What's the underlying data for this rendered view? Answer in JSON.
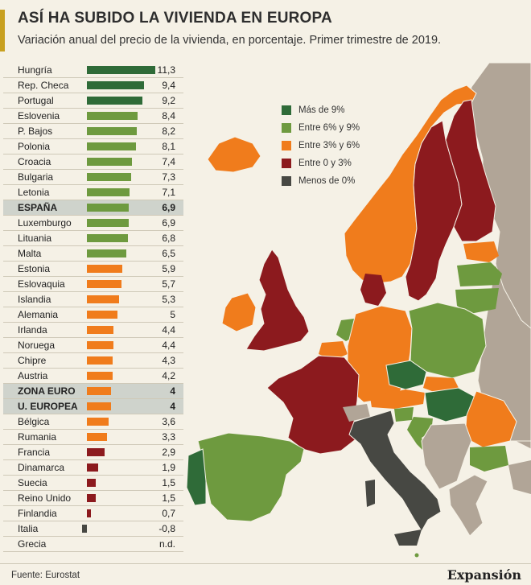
{
  "header": {
    "title": "ASÍ HA SUBIDO LA VIVIENDA EN EUROPA",
    "subtitle": "Variación anual del precio de la vivienda, en porcentaje. Primer trimestre de 2019."
  },
  "colors": {
    "more_9": "#2f6b38",
    "six_9": "#6e9a3f",
    "three_6": "#f07c1c",
    "zero_3": "#8c1a1e",
    "negative": "#474843",
    "no_data": "#b1a597",
    "sea": "#f5f1e6"
  },
  "legend": [
    {
      "label": "Más de 9%",
      "color": "#2f6b38"
    },
    {
      "label": "Entre 6% y 9%",
      "color": "#6e9a3f"
    },
    {
      "label": "Entre 3% y 6%",
      "color": "#f07c1c"
    },
    {
      "label": "Entre 0 y 3%",
      "color": "#8c1a1e"
    },
    {
      "label": "Menos de 0%",
      "color": "#474843"
    }
  ],
  "table": [
    {
      "name": "Hungría",
      "value": 11.3,
      "display": "11,3"
    },
    {
      "name": "Rep. Checa",
      "value": 9.4,
      "display": "9,4"
    },
    {
      "name": "Portugal",
      "value": 9.2,
      "display": "9,2"
    },
    {
      "name": "Eslovenia",
      "value": 8.4,
      "display": "8,4"
    },
    {
      "name": "P. Bajos",
      "value": 8.2,
      "display": "8,2"
    },
    {
      "name": "Polonia",
      "value": 8.1,
      "display": "8,1"
    },
    {
      "name": "Croacia",
      "value": 7.4,
      "display": "7,4"
    },
    {
      "name": "Bulgaria",
      "value": 7.3,
      "display": "7,3"
    },
    {
      "name": "Letonia",
      "value": 7.1,
      "display": "7,1"
    },
    {
      "name": "ESPAÑA",
      "value": 6.9,
      "display": "6,9",
      "highlight": true
    },
    {
      "name": "Luxemburgo",
      "value": 6.9,
      "display": "6,9"
    },
    {
      "name": "Lituania",
      "value": 6.8,
      "display": "6,8"
    },
    {
      "name": "Malta",
      "value": 6.5,
      "display": "6,5"
    },
    {
      "name": "Estonia",
      "value": 5.9,
      "display": "5,9"
    },
    {
      "name": "Eslovaquia",
      "value": 5.7,
      "display": "5,7"
    },
    {
      "name": "Islandia",
      "value": 5.3,
      "display": "5,3"
    },
    {
      "name": "Alemania",
      "value": 5,
      "display": "5"
    },
    {
      "name": "Irlanda",
      "value": 4.4,
      "display": "4,4"
    },
    {
      "name": "Noruega",
      "value": 4.4,
      "display": "4,4"
    },
    {
      "name": "Chipre",
      "value": 4.3,
      "display": "4,3"
    },
    {
      "name": "Austria",
      "value": 4.2,
      "display": "4,2"
    },
    {
      "name": "ZONA EURO",
      "value": 4,
      "display": "4",
      "highlight": true
    },
    {
      "name": "U. EUROPEA",
      "value": 4,
      "display": "4",
      "highlight": true
    },
    {
      "name": "Bélgica",
      "value": 3.6,
      "display": "3,6"
    },
    {
      "name": "Rumania",
      "value": 3.3,
      "display": "3,3"
    },
    {
      "name": "Francia",
      "value": 2.9,
      "display": "2,9"
    },
    {
      "name": "Dinamarca",
      "value": 1.9,
      "display": "1,9"
    },
    {
      "name": "Suecia",
      "value": 1.5,
      "display": "1,5"
    },
    {
      "name": "Reino Unido",
      "value": 1.5,
      "display": "1,5"
    },
    {
      "name": "Finlandia",
      "value": 0.7,
      "display": "0,7"
    },
    {
      "name": "Italia",
      "value": -0.8,
      "display": "-0,8"
    },
    {
      "name": "Grecia",
      "value": null,
      "display": "n.d."
    }
  ],
  "footer": {
    "source": "Fuente: Eurostat",
    "brand": "Expansión"
  }
}
